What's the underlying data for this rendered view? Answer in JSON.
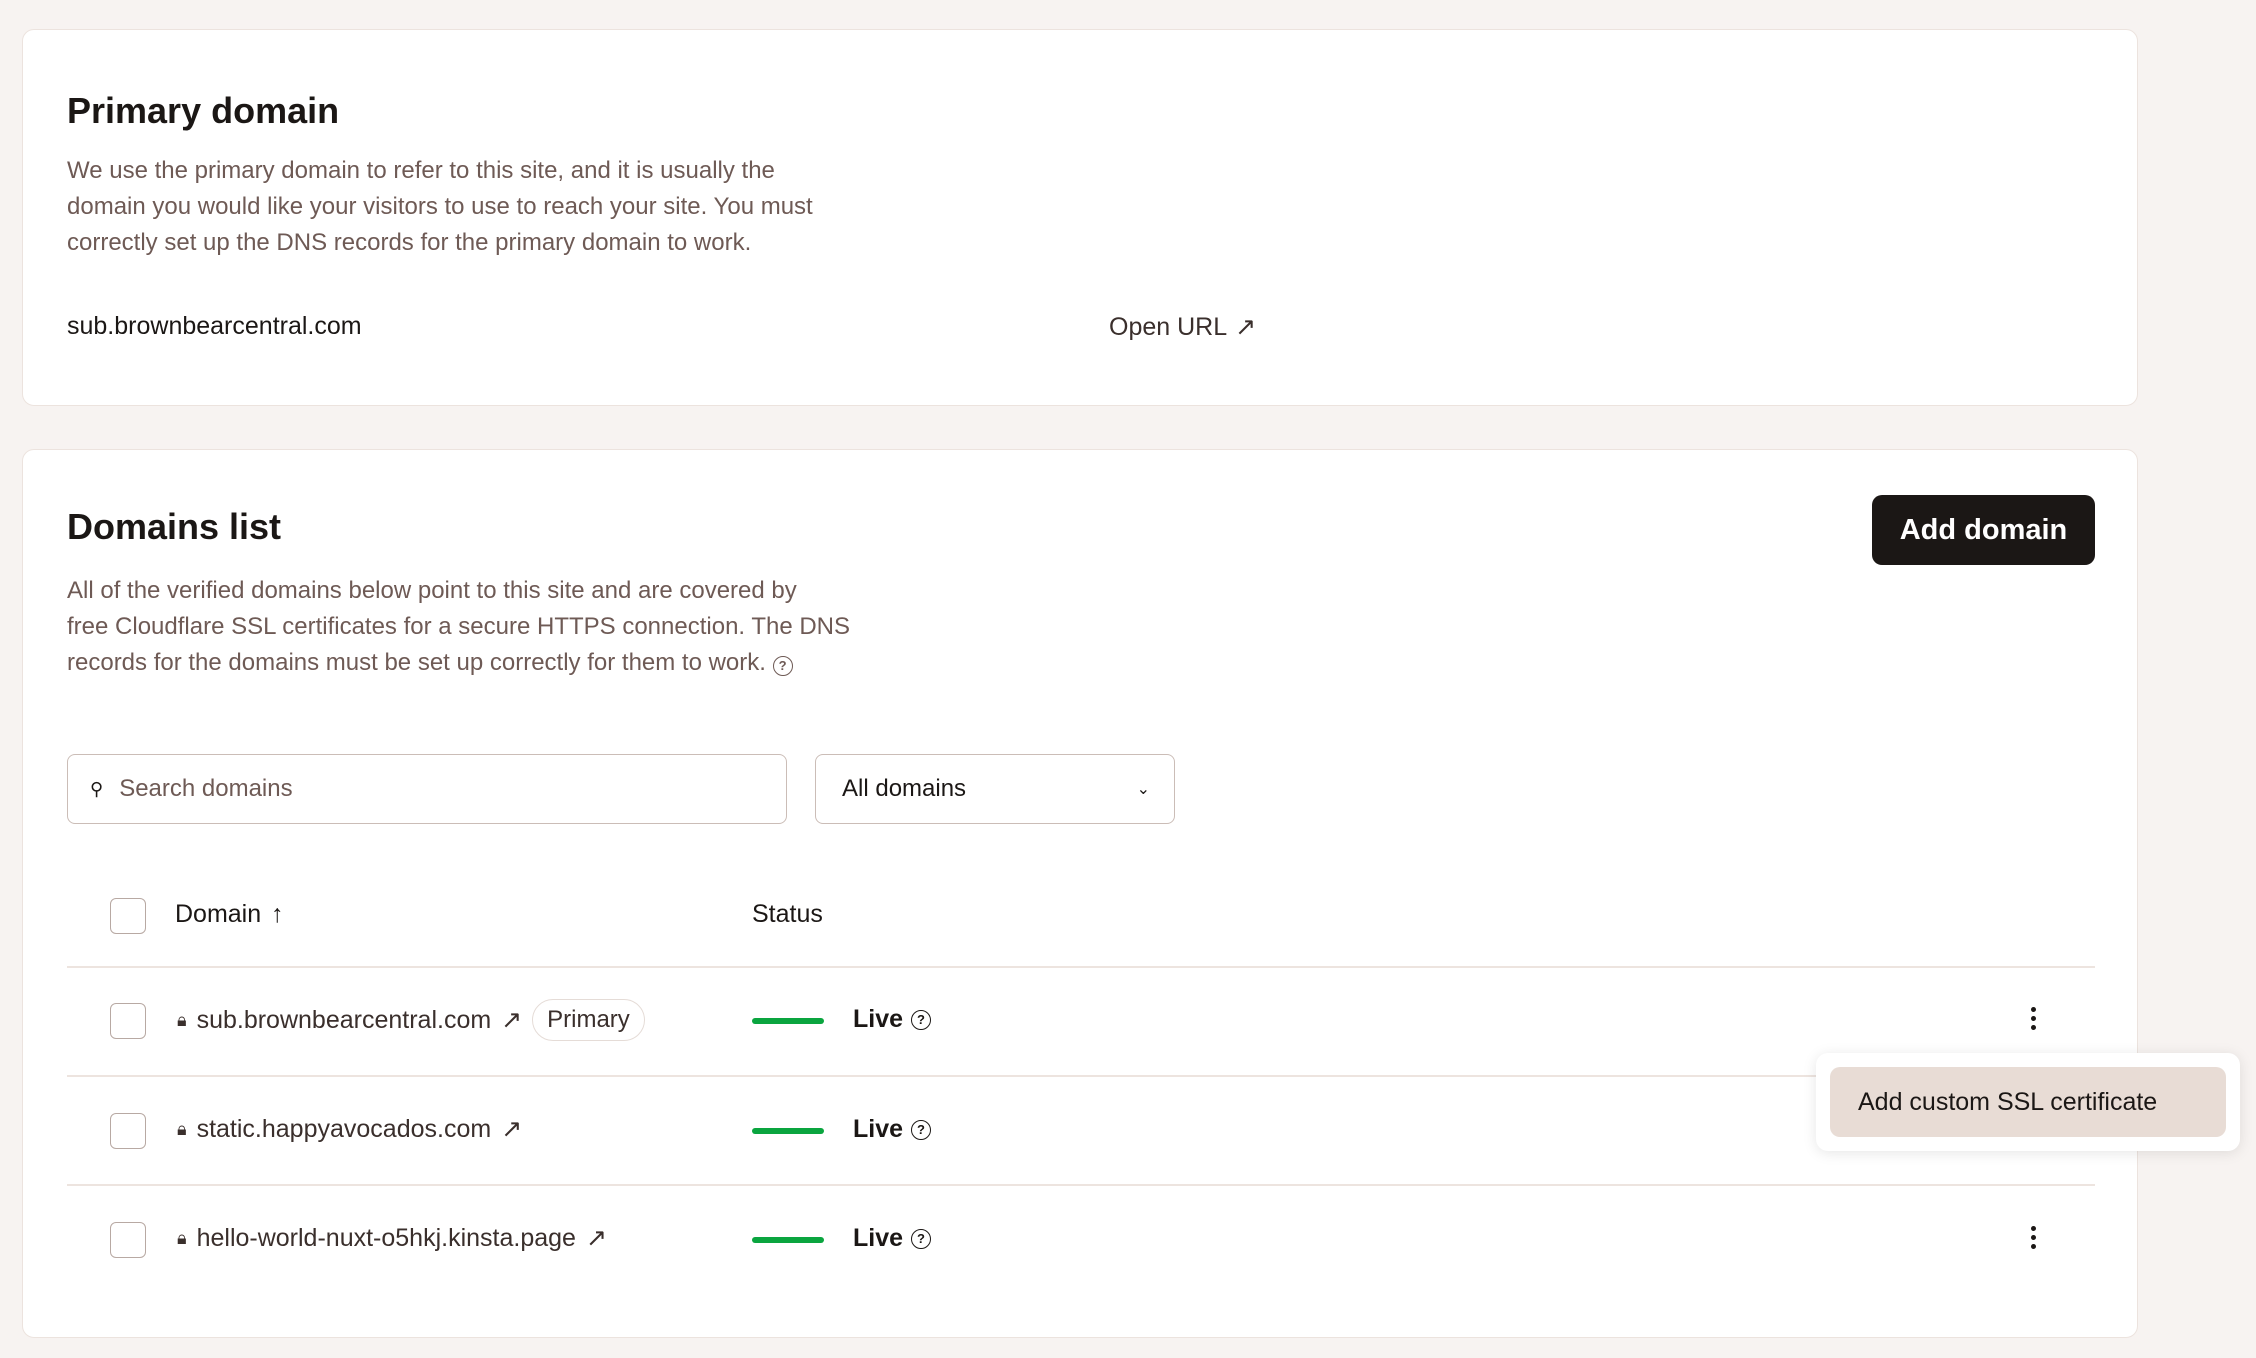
{
  "primary": {
    "title": "Primary domain",
    "desc": [
      "We use the primary domain to refer to this site, and it is usually the",
      "domain you would like your visitors to use to reach your site. You must",
      "correctly set up the DNS records for the primary domain to work."
    ],
    "domain": "sub.brownbearcentral.com",
    "open_url": "Open URL"
  },
  "domains": {
    "title": "Domains list",
    "add_button": "Add domain",
    "desc": [
      "All of the verified domains below point to this site and are covered by",
      "free Cloudflare SSL certificates for a secure HTTPS connection. The DNS",
      "records for the domains must be set up correctly for them to work."
    ],
    "search_placeholder": "Search domains",
    "filter": "All domains",
    "columns": {
      "domain": "Domain",
      "sort": "↑",
      "status": "Status"
    },
    "rows": [
      {
        "domain": "sub.brownbearcentral.com",
        "badge": "Primary",
        "status": "Live"
      },
      {
        "domain": "static.happyavocados.com",
        "status": "Live"
      },
      {
        "domain": "hello-world-nuxt-o5hkj.kinsta.page",
        "status": "Live"
      }
    ],
    "menu": {
      "item": "Add custom SSL certificate"
    }
  },
  "colors": {
    "live": "#0aa53f",
    "button": "#1b1715",
    "menu_hover": "#e8dcd5"
  }
}
